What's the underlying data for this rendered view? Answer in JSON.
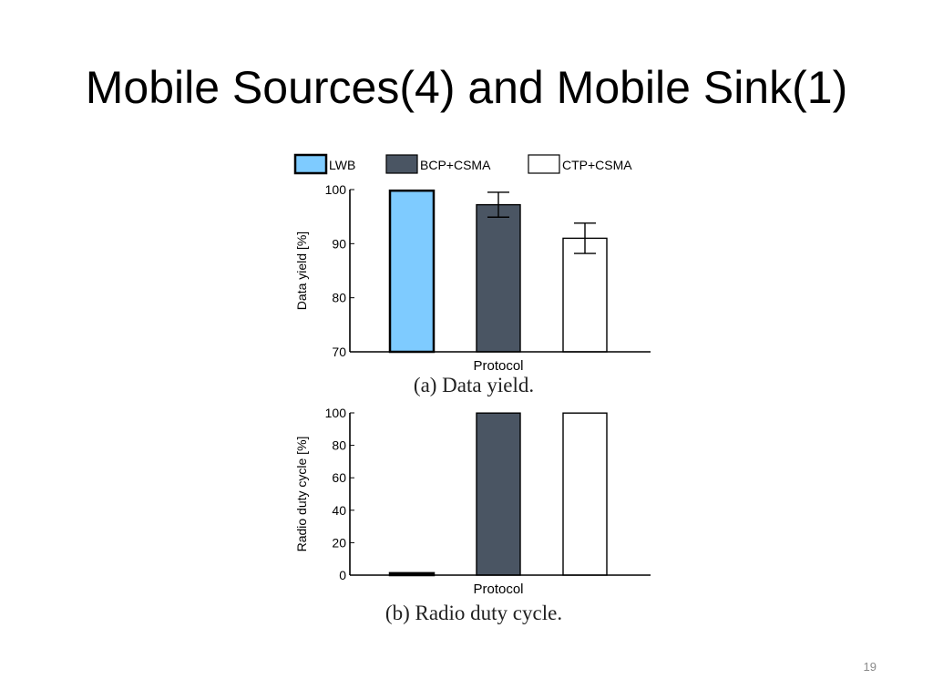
{
  "slide": {
    "title": "Mobile Sources(4) and Mobile Sink(1)",
    "page_number": "19"
  },
  "legend": [
    {
      "label": "LWB",
      "color": "#7ecbff"
    },
    {
      "label": "BCP+CSMA",
      "color": "#4a5563"
    },
    {
      "label": "CTP+CSMA",
      "color": "#ffffff"
    }
  ],
  "chart_data": [
    {
      "type": "bar",
      "caption": "(a)  Data yield.",
      "xlabel": "Protocol",
      "ylabel": "Data yield [%]",
      "ylim": [
        70,
        100
      ],
      "yticks": [
        70,
        80,
        90,
        100
      ],
      "categories": [
        "LWB",
        "BCP+CSMA",
        "CTP+CSMA"
      ],
      "values": [
        99.8,
        97.2,
        91.0
      ],
      "error": [
        0.0,
        2.3,
        2.8
      ],
      "colors": [
        "#7ecbff",
        "#4a5563",
        "#ffffff"
      ]
    },
    {
      "type": "bar",
      "caption": "(b)  Radio duty cycle.",
      "xlabel": "Protocol",
      "ylabel": "Radio duty cycle [%]",
      "ylim": [
        0,
        100
      ],
      "yticks": [
        0,
        20,
        40,
        60,
        80,
        100
      ],
      "categories": [
        "LWB",
        "BCP+CSMA",
        "CTP+CSMA"
      ],
      "values": [
        1.2,
        99.9,
        99.9
      ],
      "error": [
        0.0,
        0.0,
        0.0
      ],
      "colors": [
        "#7ecbff",
        "#4a5563",
        "#ffffff"
      ]
    }
  ]
}
